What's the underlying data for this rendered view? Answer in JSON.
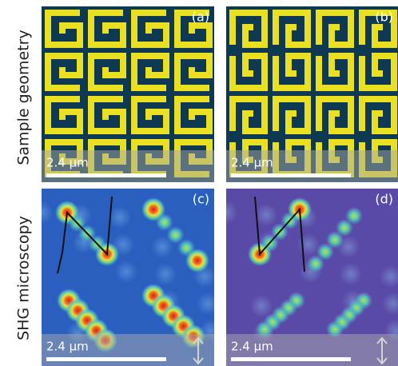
{
  "rows": [
    {
      "label": "Sample geometry"
    },
    {
      "label": "SHG microscopy"
    }
  ],
  "panels": [
    {
      "label": "(a)",
      "scale_bar": "2.4 µm"
    },
    {
      "label": "(b)",
      "scale_bar": "2.4 µm"
    },
    {
      "label": "(c)",
      "scale_bar": "2.4 µm"
    },
    {
      "label": "(d)",
      "scale_bar": "2.4 µm"
    }
  ]
}
